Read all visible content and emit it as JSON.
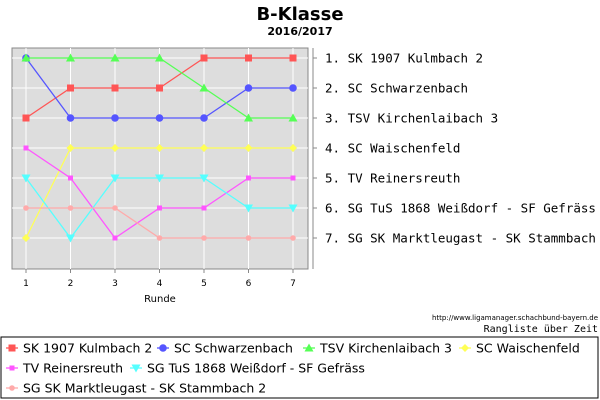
{
  "chart_data": {
    "type": "line",
    "title": "B-Klasse",
    "subtitle": "2016/2017",
    "xlabel": "Runde",
    "ylabel": "",
    "x": [
      1,
      2,
      3,
      4,
      5,
      6,
      7
    ],
    "ylim": [
      1,
      7
    ],
    "y_inverted": true,
    "grid": true,
    "legend_placement": "bottom",
    "background_color": "#dddddd",
    "rank_labels": [
      "1. SK 1907 Kulmbach 2",
      "2. SC Schwarzenbach",
      "3. TSV Kirchenlaibach 3",
      "4. SC Waischenfeld",
      "5. TV Reinersreuth",
      "6. SG TuS 1868 Weißdorf - SF Gefräss",
      "7. SG SK Marktleugast - SK Stammbach 2"
    ],
    "series": [
      {
        "name": "SK 1907 Kulmbach 2",
        "color": "#ff5555",
        "marker": "square",
        "values": [
          3,
          2,
          2,
          2,
          1,
          1,
          1
        ]
      },
      {
        "name": "SC Schwarzenbach",
        "color": "#5555ff",
        "marker": "circle",
        "values": [
          1,
          3,
          3,
          3,
          3,
          2,
          2
        ]
      },
      {
        "name": "TSV Kirchenlaibach 3",
        "color": "#55ff55",
        "marker": "triangle-up",
        "values": [
          1,
          1,
          1,
          1,
          2,
          3,
          3
        ]
      },
      {
        "name": "SC Waischenfeld",
        "color": "#ffff55",
        "marker": "diamond",
        "values": [
          7,
          4,
          4,
          4,
          4,
          4,
          4
        ]
      },
      {
        "name": "TV Reinersreuth",
        "color": "#ff55ff",
        "marker": "square-small",
        "values": [
          4,
          5,
          7,
          6,
          6,
          5,
          5
        ]
      },
      {
        "name": "SG TuS 1868 Weißdorf - SF Gefräss",
        "color": "#55ffff",
        "marker": "triangle-down",
        "values": [
          5,
          7,
          5,
          5,
          5,
          6,
          6
        ]
      },
      {
        "name": "SG SK Marktleugast - SK Stammbach 2",
        "color": "#ffaaaa",
        "marker": "circle-small",
        "values": [
          6,
          6,
          6,
          7,
          7,
          7,
          7
        ]
      }
    ]
  },
  "source_url": "http://www.ligamanager.schachbund-bayern.de",
  "caption": "Rangliste über Zeit"
}
